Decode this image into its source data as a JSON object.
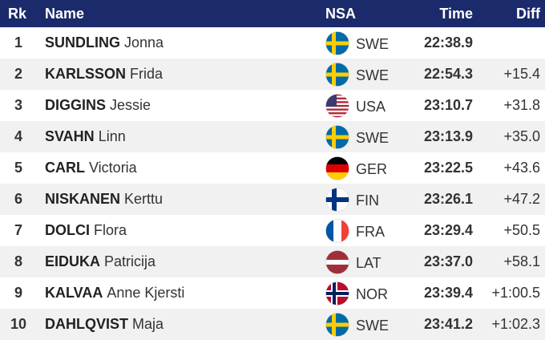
{
  "table": {
    "header": [
      "Rk",
      "Name",
      "NSA",
      "Time",
      "Diff"
    ],
    "rows": [
      {
        "rank": 1,
        "last": "SUNDLING",
        "first": "Jonna",
        "nsa": "SWE",
        "time": "22:38.9"
      },
      {
        "rank": 2,
        "last": "KARLSSON",
        "first": "Frida",
        "nsa": "SWE",
        "time": "22:54.3",
        "diff": "+15.4"
      },
      {
        "rank": 3,
        "last": "DIGGINS",
        "first": "Jessie",
        "nsa": "USA",
        "time": "23:10.7",
        "diff": "+31.8"
      },
      {
        "rank": 4,
        "last": "SVAHN",
        "first": "Linn",
        "nsa": "SWE",
        "time": "23:13.9",
        "diff": "+35.0"
      },
      {
        "rank": 5,
        "last": "CARL",
        "first": "Victoria",
        "nsa": "GER",
        "time": "23:22.5",
        "diff": "+43.6"
      },
      {
        "rank": 6,
        "last": "NISKANEN",
        "first": "Kerttu",
        "nsa": "FIN",
        "time": "23:26.1",
        "diff": "+47.2"
      },
      {
        "rank": 7,
        "last": "DOLCI",
        "first": "Flora",
        "nsa": "FRA",
        "time": "23:29.4",
        "diff": "+50.5"
      },
      {
        "rank": 8,
        "last": "EIDUKA",
        "first": "Patricija",
        "nsa": "LAT",
        "time": "23:37.0",
        "diff": "+58.1"
      },
      {
        "rank": 9,
        "last": "KALVAA",
        "first": "Anne Kjersti",
        "nsa": "NOR",
        "time": "23:39.4",
        "diff": "+1:00.5"
      },
      {
        "rank": 10,
        "last": "DAHLQVIST",
        "first": "Maja",
        "nsa": "SWE",
        "time": "23:41.2",
        "diff": "+1:02.3"
      }
    ]
  }
}
